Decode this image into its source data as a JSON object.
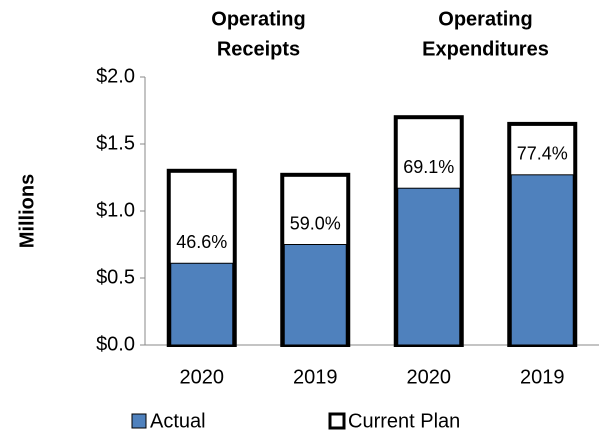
{
  "chart_data": {
    "type": "bar",
    "y_label": "Millions",
    "group_titles": [
      [
        "Operating",
        "Receipts"
      ],
      [
        "Operating",
        "Expenditures"
      ]
    ],
    "categories": [
      "2020",
      "2019",
      "2020",
      "2019"
    ],
    "series": [
      {
        "name": "Actual",
        "color": "#4f81bd",
        "values": [
          0.61,
          0.75,
          1.17,
          1.27
        ]
      },
      {
        "name": "Current Plan",
        "color": "#ffffff",
        "values": [
          1.3,
          1.27,
          1.7,
          1.65
        ]
      }
    ],
    "annotations": [
      "46.6%",
      "59.0%",
      "69.1%",
      "77.4%"
    ],
    "ylim": [
      0,
      2
    ],
    "yticks": [
      {
        "value": 0,
        "label": "$0.0"
      },
      {
        "value": 0.5,
        "label": "$0.5"
      },
      {
        "value": 1,
        "label": "$1.0"
      },
      {
        "value": 1.5,
        "label": "$1.5"
      },
      {
        "value": 2,
        "label": "$2.0"
      }
    ],
    "grid": false
  }
}
